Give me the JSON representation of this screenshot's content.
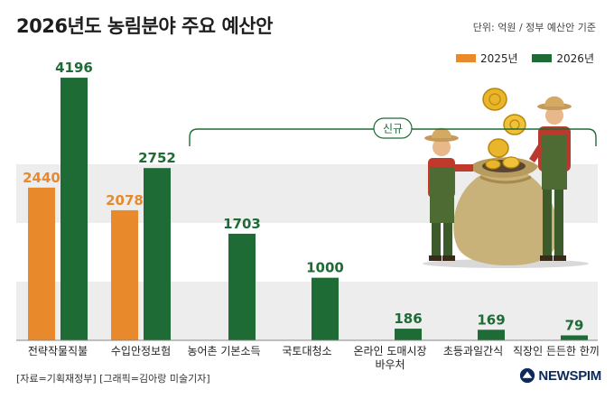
{
  "header": {
    "title": "2026년도 농림분야 주요 예산안",
    "unit": "단위: 억원 / 정부 예산안 기준"
  },
  "legend": [
    {
      "label": "2025년",
      "color": "#e8892b"
    },
    {
      "label": "2026년",
      "color": "#1e6b35"
    }
  ],
  "new_label": "신규",
  "footer": {
    "source": "[자료=기획재정부] [그래픽=김아랑 미술기자]",
    "logo_text": "NEWSPIM"
  },
  "chart_data": {
    "type": "bar",
    "title": "2026년도 농림분야 주요 예산안",
    "xlabel": "",
    "ylabel": "",
    "ylim": [
      0,
      4500
    ],
    "categories": [
      "전략작물직불",
      "수입안정보험",
      "농어촌 기본소득",
      "국토대청소",
      "온라인 도매시장 바우처",
      "초등과일간식",
      "직장인 든든한 한끼"
    ],
    "category_lines": [
      [
        "전략작물직불"
      ],
      [
        "수입안정보험"
      ],
      [
        "농어촌 기본소득"
      ],
      [
        "국토대청소"
      ],
      [
        "온라인 도매시장",
        "바우처"
      ],
      [
        "초등과일간식"
      ],
      [
        "직장인 든든한 한끼"
      ]
    ],
    "series": [
      {
        "name": "2025년",
        "color": "#e8892b",
        "values": [
          2440,
          2078,
          null,
          null,
          null,
          null,
          null
        ]
      },
      {
        "name": "2026년",
        "color": "#1e6b35",
        "values": [
          4196,
          2752,
          1703,
          1000,
          186,
          169,
          79
        ]
      }
    ],
    "grid": false,
    "legend_position": "top-right"
  }
}
